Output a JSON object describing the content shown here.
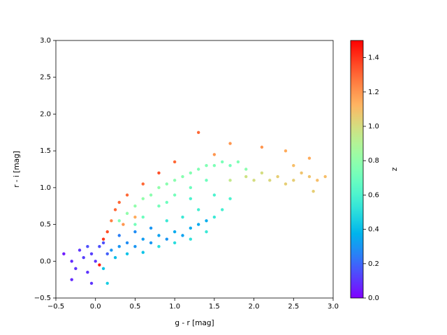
{
  "chart_data": {
    "type": "scatter",
    "x_label": "g - r [mag]",
    "y_label": "r - i [mag]",
    "colorbar_label": "z",
    "colormap": "rainbow",
    "clim": [
      0,
      1.5
    ],
    "xlim": [
      -0.5,
      3.0
    ],
    "ylim": [
      -0.5,
      3.0
    ],
    "xticks": [
      {
        "value": -0.5,
        "label": "−0.5"
      },
      {
        "value": 0.0,
        "label": "0.0"
      },
      0.5,
      {
        "value": 1.0,
        "label": "1.0"
      },
      1.5,
      {
        "value": 2.0,
        "label": "2.0"
      },
      2.5,
      {
        "value": 3.0,
        "label": "3.0"
      }
    ],
    "yticks": [
      {
        "value": -0.5,
        "label": "−0.5"
      },
      {
        "value": 0.0,
        "label": "0.0"
      },
      0.5,
      {
        "value": 1.0,
        "label": "1.0"
      },
      1.5,
      {
        "value": 2.0,
        "label": "2.0"
      },
      2.5,
      {
        "value": 3.0,
        "label": "3.0"
      }
    ],
    "cticks": [
      {
        "value": 0.0,
        "label": "0.0"
      },
      0.2,
      0.4,
      0.6,
      0.8,
      {
        "value": 1.0,
        "label": "1.0"
      },
      1.2,
      1.4
    ],
    "x": [
      -0.4,
      -0.3,
      -0.25,
      -0.2,
      -0.15,
      -0.1,
      -0.1,
      -0.05,
      0.0,
      0.05,
      -0.3,
      0.1,
      0.15,
      -0.05,
      0.2,
      0.3,
      0.4,
      0.5,
      0.6,
      0.7,
      0.8,
      0.9,
      1.0,
      1.1,
      1.2,
      1.3,
      1.4,
      0.3,
      0.5,
      0.7,
      0.25,
      0.4,
      0.6,
      0.1,
      0.15,
      0.8,
      1.0,
      1.2,
      1.4,
      1.5,
      1.6,
      1.7,
      1.1,
      1.3,
      0.9,
      1.5,
      1.2,
      0.3,
      0.4,
      0.5,
      0.6,
      0.7,
      0.8,
      0.9,
      1.0,
      1.1,
      1.2,
      1.3,
      1.4,
      1.5,
      1.6,
      1.7,
      1.8,
      1.9,
      0.6,
      0.8,
      1.0,
      1.2,
      1.4,
      0.5,
      0.9,
      1.7,
      1.9,
      2.0,
      2.1,
      2.2,
      2.3,
      2.4,
      2.5,
      2.6,
      2.7,
      2.8,
      2.9,
      2.75,
      2.5,
      0.2,
      0.25,
      0.3,
      0.4,
      0.15,
      0.1,
      0.05,
      0.6,
      0.8,
      1.0,
      1.3,
      1.5,
      1.7,
      2.1,
      2.4,
      2.7,
      0.35,
      0.5
    ],
    "y": [
      0.1,
      0.0,
      -0.1,
      0.15,
      0.05,
      -0.15,
      0.2,
      0.1,
      0.0,
      0.2,
      -0.25,
      0.25,
      0.1,
      -0.3,
      0.15,
      0.2,
      0.25,
      0.2,
      0.3,
      0.25,
      0.35,
      0.3,
      0.4,
      0.35,
      0.45,
      0.5,
      0.55,
      0.35,
      0.4,
      0.45,
      0.05,
      0.1,
      0.12,
      -0.1,
      -0.3,
      0.2,
      0.25,
      0.3,
      0.4,
      0.6,
      0.7,
      0.85,
      0.6,
      0.7,
      0.55,
      0.9,
      0.85,
      0.55,
      0.65,
      0.75,
      0.85,
      0.9,
      1.0,
      1.05,
      1.1,
      1.15,
      1.2,
      1.25,
      1.3,
      1.3,
      1.35,
      1.3,
      1.35,
      1.25,
      0.6,
      0.75,
      0.9,
      1.0,
      1.1,
      0.5,
      0.8,
      1.1,
      1.15,
      1.1,
      1.2,
      1.1,
      1.15,
      1.05,
      1.1,
      1.2,
      1.15,
      1.1,
      1.15,
      0.95,
      1.3,
      0.55,
      0.7,
      0.8,
      0.9,
      0.4,
      0.3,
      -0.05,
      1.05,
      1.2,
      1.35,
      1.75,
      1.45,
      1.6,
      1.55,
      1.5,
      1.4,
      0.5,
      0.6
    ],
    "z": [
      0.05,
      0.08,
      0.1,
      0.1,
      0.12,
      0.1,
      0.15,
      0.12,
      0.1,
      0.15,
      0.08,
      0.15,
      0.18,
      0.1,
      0.3,
      0.3,
      0.28,
      0.3,
      0.32,
      0.3,
      0.33,
      0.3,
      0.35,
      0.33,
      0.35,
      0.35,
      0.36,
      0.25,
      0.28,
      0.3,
      0.4,
      0.42,
      0.42,
      0.42,
      0.45,
      0.5,
      0.5,
      0.52,
      0.55,
      0.55,
      0.58,
      0.6,
      0.55,
      0.58,
      0.55,
      0.6,
      0.6,
      0.75,
      0.8,
      0.8,
      0.8,
      0.78,
      0.8,
      0.78,
      0.78,
      0.77,
      0.76,
      0.75,
      0.75,
      0.74,
      0.73,
      0.72,
      0.75,
      0.78,
      0.7,
      0.72,
      0.72,
      0.7,
      0.7,
      0.72,
      0.7,
      0.95,
      0.98,
      1.0,
      1.0,
      1.02,
      1.05,
      1.05,
      1.05,
      1.08,
      1.08,
      1.1,
      1.1,
      1.05,
      1.1,
      1.25,
      1.3,
      1.3,
      1.3,
      1.35,
      1.4,
      1.45,
      1.3,
      1.35,
      1.3,
      1.3,
      1.2,
      1.2,
      1.2,
      1.15,
      1.15,
      1.2,
      1.15
    ]
  }
}
